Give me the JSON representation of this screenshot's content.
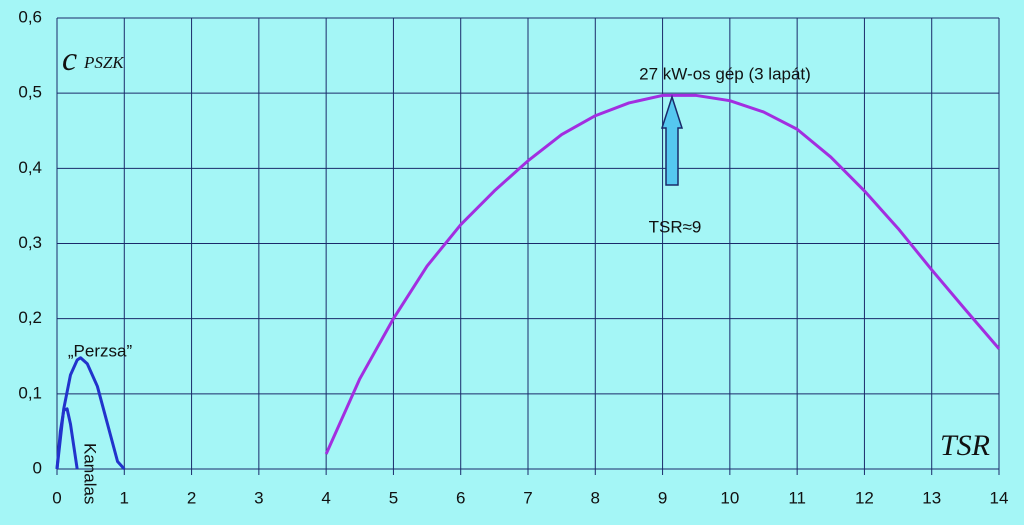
{
  "chart_data": {
    "type": "line",
    "ylabel": {
      "main": "c",
      "sub": "PSZK"
    },
    "xlabel": "TSR",
    "xlim": [
      0,
      14
    ],
    "ylim": [
      0,
      0.6
    ],
    "xticks": [
      0,
      1,
      2,
      3,
      4,
      5,
      6,
      7,
      8,
      9,
      10,
      11,
      12,
      13,
      14
    ],
    "yticks": [
      0,
      {
        "value": 0.1,
        "label": "0,1"
      },
      {
        "value": 0.2,
        "label": "0,2"
      },
      {
        "value": 0.3,
        "label": "0,3"
      },
      {
        "value": 0.4,
        "label": "0,4"
      },
      {
        "value": 0.5,
        "label": "0,5"
      },
      {
        "value": 0.6,
        "label": "0,6"
      }
    ],
    "grid": true,
    "series": [
      {
        "name": "27 kW-os gép (3 lapát)",
        "color": "#a22ee0",
        "x": [
          4,
          4.5,
          5,
          5.5,
          6,
          6.5,
          7,
          7.5,
          8,
          8.5,
          9,
          9.5,
          10,
          10.5,
          11,
          11.5,
          12,
          12.5,
          13,
          13.5,
          14
        ],
        "values": [
          0.02,
          0.12,
          0.2,
          0.27,
          0.325,
          0.37,
          0.41,
          0.445,
          0.47,
          0.487,
          0.497,
          0.497,
          0.49,
          0.475,
          0.452,
          0.415,
          0.37,
          0.32,
          0.265,
          0.212,
          0.16
        ]
      },
      {
        "name": "„Perzsa”",
        "color": "#2233cc",
        "x": [
          0,
          0.1,
          0.2,
          0.3,
          0.35,
          0.45,
          0.6,
          0.75,
          0.9,
          1.0
        ],
        "values": [
          0,
          0.08,
          0.125,
          0.145,
          0.148,
          0.14,
          0.11,
          0.06,
          0.01,
          0
        ]
      },
      {
        "name": "Kanalas",
        "color": "#2233cc",
        "x": [
          0,
          0.05,
          0.1,
          0.15,
          0.2,
          0.25,
          0.3
        ],
        "values": [
          0,
          0.05,
          0.078,
          0.08,
          0.06,
          0.03,
          0
        ]
      }
    ],
    "annotations": [
      "TSR≈9"
    ]
  }
}
